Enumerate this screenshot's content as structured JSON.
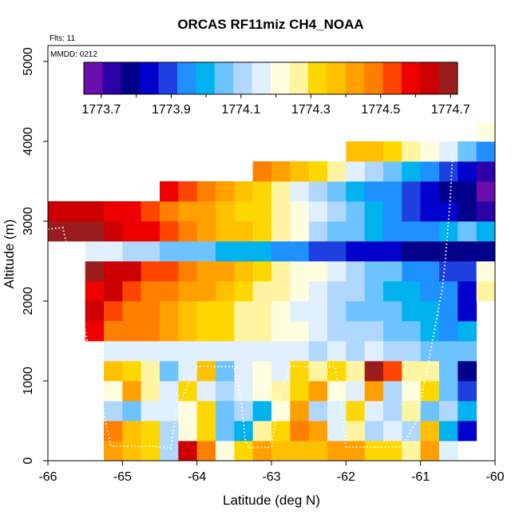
{
  "chart_data": {
    "type": "heatmap",
    "title": "ORCAS RF11miz CH4_NOAA",
    "xlabel": "Latitude (deg N)",
    "ylabel": "Altitude (m)",
    "xlim": [
      -66,
      -60
    ],
    "ylim": [
      0,
      5200
    ],
    "x_ticks": [
      -66,
      -65,
      -64,
      -63,
      -62,
      -61,
      -60
    ],
    "x_tick_labels": [
      "-66",
      "-65",
      "-64",
      "-63",
      "-62",
      "-61",
      "-60"
    ],
    "y_ticks": [
      0,
      1000,
      2000,
      3000,
      4000,
      5000
    ],
    "y_tick_labels": [
      "0",
      "1000",
      "2000",
      "3000",
      "4000",
      "5000"
    ],
    "annotations": {
      "flights": "Flts: 11",
      "date": "MMDD: 0212"
    },
    "colorbar": {
      "min": 1773.65,
      "max": 1774.72,
      "ticks": [
        1773.7,
        1773.9,
        1774.1,
        1774.3,
        1774.5,
        1774.7
      ],
      "tick_labels": [
        "1773.7",
        "1773.9",
        "1774.1",
        "1774.3",
        "1774.5",
        "1774.7"
      ]
    },
    "cells": {
      "lat_start": -66.0,
      "lat_step": 0.25,
      "alt_start": 0,
      "alt_step": 250,
      "rows": [
        {
          "alt": 0,
          "values": [
            null,
            null,
            null,
            1774.44,
            1774.36,
            1774.34,
            1774.13,
            1774.63,
            1774.5,
            1774.22,
            1774.3,
            1774.4,
            1774.39,
            1774.38,
            1774.38,
            1774.4,
            1774.41,
            1774.33,
            1774.31,
            1774.26,
            1774.44,
            1774.15,
            null,
            null
          ]
        },
        {
          "alt": 250,
          "values": [
            null,
            null,
            null,
            1774.48,
            1774.37,
            1774.33,
            1774.12,
            1774.19,
            1774.3,
            1774.05,
            1774.0,
            1774.25,
            1774.32,
            1774.47,
            1774.41,
            1774.16,
            1774.26,
            1774.08,
            1774.17,
            1774.09,
            1774.36,
            1774.0,
            1773.82,
            null
          ]
        },
        {
          "alt": 500,
          "values": [
            null,
            null,
            null,
            1774.12,
            1774.07,
            1774.14,
            1774.16,
            1774.23,
            1774.32,
            1774.07,
            1774.1,
            1774.02,
            1774.21,
            1774.45,
            1774.08,
            1774.17,
            1774.3,
            1774.17,
            1774.13,
            1774.28,
            1774.06,
            1774.11,
            1774.02,
            null
          ]
        },
        {
          "alt": 750,
          "values": [
            null,
            null,
            null,
            1774.22,
            1774.4,
            1774.24,
            1774.17,
            1774.3,
            1774.18,
            1774.13,
            1774.16,
            1774.2,
            1774.25,
            1774.33,
            1774.41,
            1774.23,
            1774.17,
            1774.42,
            1774.13,
            1774.23,
            1774.3,
            1774.06,
            1773.88,
            null
          ]
        },
        {
          "alt": 1000,
          "values": [
            null,
            null,
            null,
            1774.36,
            1774.34,
            1774.27,
            1774.06,
            1774.18,
            1774.36,
            1774.05,
            1774.18,
            1774.22,
            1774.17,
            1774.32,
            1774.27,
            1774.33,
            1774.24,
            1774.68,
            1774.54,
            1774.25,
            1774.24,
            1774.05,
            1773.8,
            null
          ]
        },
        {
          "alt": 1250,
          "values": [
            null,
            null,
            null,
            1774.16,
            1774.16,
            1774.16,
            1774.16,
            1774.16,
            1774.16,
            1774.16,
            1774.16,
            1774.16,
            1774.16,
            1774.16,
            1774.13,
            1774.15,
            1774.13,
            1774.16,
            1774.13,
            1774.1,
            1774.07,
            1774.06,
            1774.06,
            null
          ]
        },
        {
          "alt": 1500,
          "values": [
            null,
            null,
            1774.6,
            1774.5,
            1774.49,
            1774.46,
            1774.42,
            1774.37,
            1774.33,
            1774.3,
            1774.27,
            1774.26,
            1774.23,
            1774.2,
            1774.16,
            1774.13,
            1774.1,
            1774.08,
            1774.05,
            1774.03,
            1774.01,
            1773.97,
            1774.01,
            null
          ]
        },
        {
          "alt": 1750,
          "values": [
            null,
            null,
            1774.62,
            1774.52,
            1774.5,
            1774.47,
            1774.43,
            1774.39,
            1774.34,
            1774.31,
            1774.28,
            1774.24,
            1774.2,
            1774.17,
            1774.14,
            1774.11,
            1774.07,
            1774.03,
            1774.03,
            1774.02,
            1773.98,
            1773.93,
            1773.85,
            null
          ]
        },
        {
          "alt": 2000,
          "values": [
            null,
            null,
            1774.6,
            1774.62,
            1774.52,
            1774.49,
            1774.48,
            1774.45,
            1774.4,
            1774.35,
            1774.31,
            1774.28,
            1774.24,
            1774.2,
            1774.16,
            1774.12,
            1774.08,
            1774.05,
            1774.01,
            1774.02,
            1773.96,
            1773.92,
            1773.86,
            1774.24
          ]
        },
        {
          "alt": 2250,
          "values": [
            null,
            null,
            1774.68,
            1774.63,
            1774.62,
            1774.55,
            1774.52,
            1774.46,
            1774.43,
            1774.4,
            1774.37,
            1774.34,
            1774.28,
            1774.22,
            1774.19,
            1774.17,
            1774.13,
            1774.07,
            1774.03,
            1773.97,
            1773.92,
            1773.89,
            1773.91,
            1774.22
          ]
        },
        {
          "alt": 2500,
          "values": [
            null,
            null,
            1774.14,
            1774.14,
            1774.1,
            1774.09,
            1774.05,
            1774.06,
            1774.04,
            1774.02,
            1774.01,
            1773.99,
            1773.97,
            1773.94,
            1773.89,
            1773.88,
            1773.85,
            1773.84,
            1773.83,
            1773.8,
            1773.8,
            1773.8,
            1773.8,
            1773.8
          ]
        },
        {
          "alt": 2750,
          "values": [
            1774.7,
            1774.67,
            1774.67,
            1774.64,
            1774.61,
            1774.57,
            1774.52,
            1774.47,
            1774.43,
            1774.38,
            1774.35,
            1774.32,
            1774.25,
            1774.19,
            1774.13,
            1774.07,
            1774.03,
            1773.98,
            1773.95,
            1773.93,
            1773.96,
            1774.02,
            1774.06,
            1774.02
          ]
        },
        {
          "alt": 3000,
          "values": [
            1774.66,
            1774.66,
            1774.63,
            1774.6,
            1774.56,
            1774.52,
            1774.48,
            1774.44,
            1774.41,
            1774.37,
            1774.34,
            1774.3,
            1774.25,
            1774.21,
            1774.15,
            1774.1,
            1774.05,
            1774.01,
            1773.96,
            1773.9,
            1773.86,
            1773.84,
            1773.8,
            1773.73
          ]
        },
        {
          "alt": 3250,
          "values": [
            null,
            null,
            null,
            null,
            null,
            null,
            1774.61,
            1774.54,
            1774.49,
            1774.43,
            1774.36,
            1774.3,
            1774.24,
            1774.18,
            1774.11,
            1774.05,
            1774.0,
            1773.97,
            1773.93,
            1773.89,
            1773.84,
            1773.81,
            1773.8,
            1773.7
          ]
        },
        {
          "alt": 3500,
          "values": [
            null,
            null,
            null,
            null,
            null,
            null,
            null,
            null,
            null,
            null,
            null,
            1774.48,
            1774.41,
            1774.36,
            1774.3,
            1774.24,
            1774.18,
            1774.11,
            1774.04,
            1773.99,
            1773.94,
            1773.88,
            1773.84,
            1773.74
          ]
        },
        {
          "alt": 3750,
          "values": [
            null,
            null,
            null,
            null,
            null,
            null,
            null,
            null,
            null,
            null,
            null,
            null,
            null,
            null,
            null,
            null,
            1774.39,
            1774.35,
            1774.3,
            1774.25,
            1774.22,
            1774.15,
            1774.07,
            1773.96
          ]
        },
        {
          "alt": 4000,
          "values": [
            null,
            null,
            null,
            null,
            null,
            null,
            null,
            null,
            null,
            null,
            null,
            null,
            null,
            null,
            null,
            null,
            null,
            null,
            null,
            null,
            null,
            null,
            null,
            1774.23
          ]
        }
      ]
    },
    "flight_track": [
      [
        -66.0,
        2900
      ],
      [
        -65.8,
        2920
      ],
      [
        -65.65,
        2300
      ],
      [
        -65.45,
        1400
      ],
      [
        -65.3,
        900
      ],
      [
        -65.22,
        450
      ],
      [
        -65.15,
        180
      ],
      [
        -64.9,
        180
      ],
      [
        -64.6,
        180
      ],
      [
        -64.35,
        160
      ],
      [
        -64.28,
        600
      ],
      [
        -64.1,
        1000
      ],
      [
        -64.0,
        1180
      ],
      [
        -63.5,
        1180
      ],
      [
        -63.4,
        700
      ],
      [
        -63.35,
        250
      ],
      [
        -63.3,
        160
      ],
      [
        -63.0,
        170
      ],
      [
        -62.9,
        800
      ],
      [
        -62.75,
        1180
      ],
      [
        -62.4,
        1180
      ],
      [
        -62.15,
        1180
      ],
      [
        -62.05,
        600
      ],
      [
        -62.0,
        170
      ],
      [
        -61.6,
        170
      ],
      [
        -61.25,
        170
      ],
      [
        -61.05,
        500
      ],
      [
        -60.9,
        1200
      ],
      [
        -60.78,
        1800
      ],
      [
        -60.7,
        2200
      ],
      [
        -60.65,
        2700
      ],
      [
        -60.6,
        3300
      ],
      [
        -60.57,
        3800
      ]
    ]
  },
  "colors": {
    "scale": [
      "#6a0dad",
      "#2b00a8",
      "#00008b",
      "#0000cd",
      "#1e40e0",
      "#1e90ff",
      "#00b2ee",
      "#6cc3ff",
      "#b0d8ff",
      "#e0f0ff",
      "#ffffe0",
      "#fff5a0",
      "#ffd700",
      "#ffc000",
      "#ffa000",
      "#ff7f00",
      "#ff4500",
      "#ee0000",
      "#cc0000",
      "#9b1c1c"
    ],
    "track": "#ffffff",
    "frame": "#000000"
  }
}
